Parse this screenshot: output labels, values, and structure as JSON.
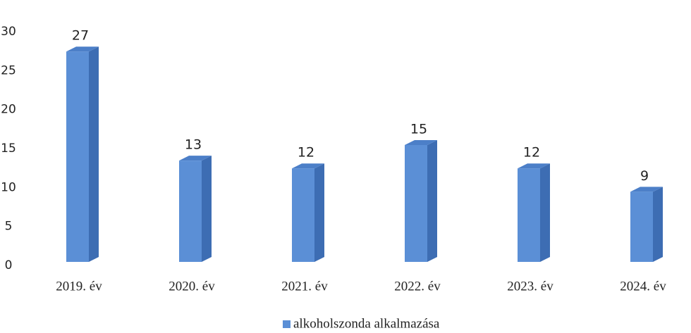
{
  "chart_data": {
    "type": "bar",
    "categories": [
      "2019. év",
      "2020. év",
      "2021. év",
      "2022. év",
      "2023. év",
      "2024. év"
    ],
    "series": [
      {
        "name": "alkoholszonda alkalmazása",
        "color": "#5b8fd6",
        "values": [
          27,
          13,
          12,
          15,
          12,
          9
        ]
      }
    ],
    "ylim": [
      0,
      30
    ],
    "yticks": [
      0,
      5,
      10,
      15,
      20,
      25,
      30
    ],
    "grid": false,
    "legend": "bottom"
  }
}
